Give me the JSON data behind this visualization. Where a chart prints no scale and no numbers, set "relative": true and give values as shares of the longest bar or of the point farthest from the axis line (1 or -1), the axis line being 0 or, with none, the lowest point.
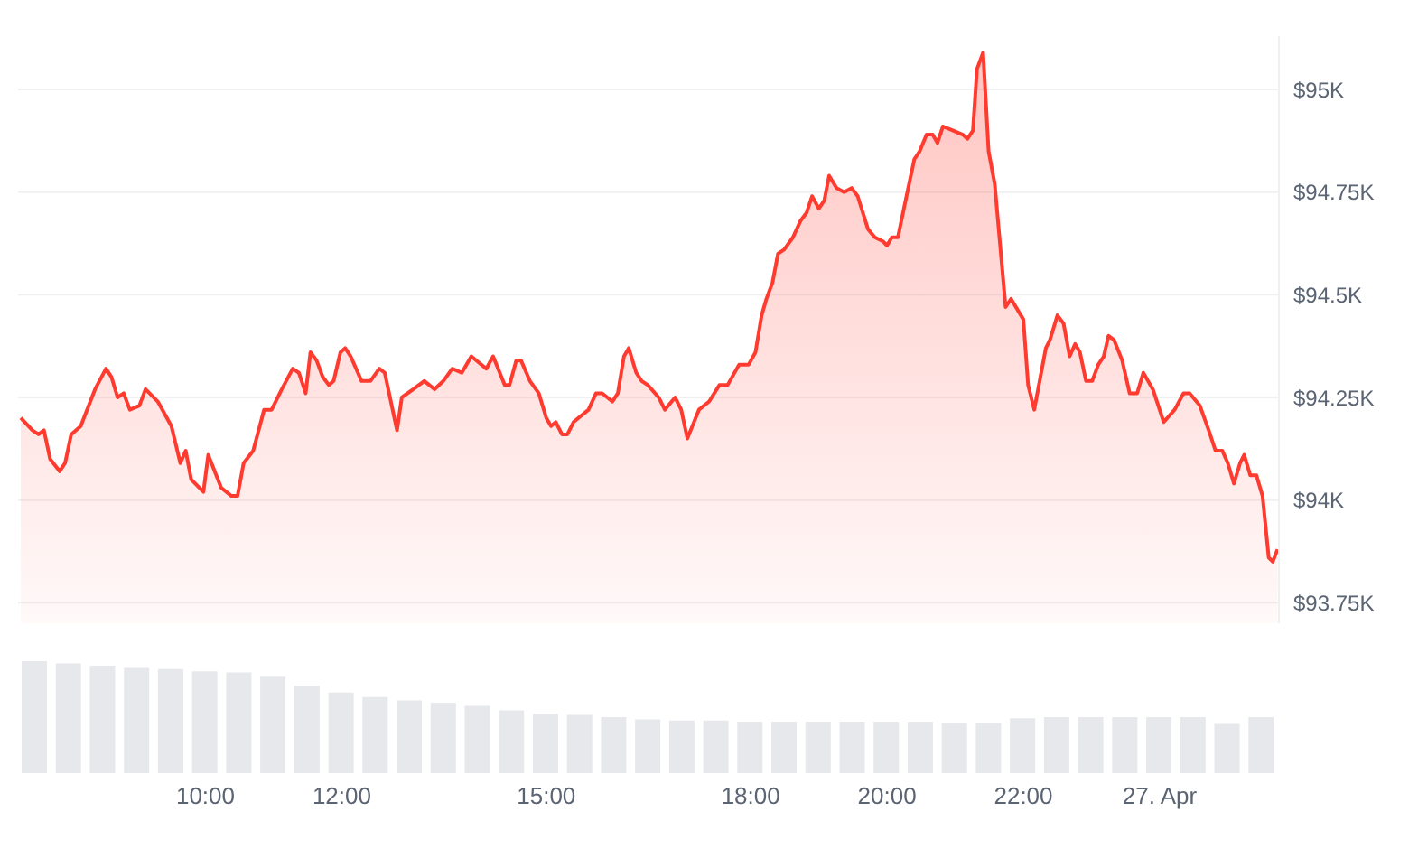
{
  "chart_data": [
    {
      "type": "area",
      "x": [
        7.29,
        7.46,
        7.55,
        7.63,
        7.72,
        7.86,
        7.94,
        8.03,
        8.17,
        8.38,
        8.54,
        8.62,
        8.71,
        8.8,
        8.89,
        9.03,
        9.12,
        9.3,
        9.5,
        9.63,
        9.71,
        9.79,
        9.97,
        10.04,
        10.23,
        10.38,
        10.47,
        10.56,
        10.7,
        10.86,
        10.97,
        11.12,
        11.28,
        11.37,
        11.47,
        11.54,
        11.63,
        11.72,
        11.81,
        11.88,
        11.98,
        12.05,
        12.13,
        12.29,
        12.42,
        12.55,
        12.63,
        12.81,
        12.88,
        13.05,
        13.21,
        13.36,
        13.49,
        13.62,
        13.76,
        13.9,
        14.12,
        14.22,
        14.39,
        14.46,
        14.56,
        14.63,
        14.76,
        14.89,
        15.0,
        15.07,
        15.14,
        15.23,
        15.31,
        15.4,
        15.62,
        15.73,
        15.82,
        15.97,
        16.05,
        16.14,
        16.21,
        16.32,
        16.4,
        16.49,
        16.65,
        16.74,
        16.89,
        16.98,
        17.07,
        17.24,
        17.39,
        17.54,
        17.66,
        17.83,
        17.97,
        18.07,
        18.16,
        18.23,
        18.32,
        18.4,
        18.49,
        18.62,
        18.73,
        18.82,
        18.9,
        19.0,
        19.08,
        19.15,
        19.26,
        19.37,
        19.48,
        19.57,
        19.72,
        19.82,
        19.94,
        20.0,
        20.07,
        20.16,
        20.26,
        20.4,
        20.48,
        20.58,
        20.67,
        20.74,
        20.82,
        20.97,
        21.11,
        21.18,
        21.26,
        21.32,
        21.41,
        21.49,
        21.58,
        21.74,
        21.82,
        22.0,
        22.07,
        22.16,
        22.33,
        22.39,
        22.5,
        22.59,
        22.68,
        22.76,
        22.83,
        22.92,
        23.01,
        23.1,
        23.18,
        23.25,
        23.33,
        23.45,
        23.56,
        23.67,
        23.76,
        23.9,
        24.06,
        24.22,
        24.35,
        24.44,
        24.59,
        24.72,
        24.82,
        24.92,
        25.0,
        25.09,
        25.18,
        25.24,
        25.33,
        25.42,
        25.51,
        25.6,
        25.66,
        25.73
      ],
      "series": [
        {
          "color": "#ff3b30",
          "values": [
            94200,
            94170,
            94160,
            94170,
            94100,
            94070,
            94090,
            94160,
            94180,
            94270,
            94320,
            94300,
            94250,
            94260,
            94220,
            94230,
            94270,
            94240,
            94180,
            94090,
            94120,
            94050,
            94020,
            94110,
            94030,
            94010,
            94010,
            94090,
            94120,
            94220,
            94220,
            94270,
            94320,
            94310,
            94260,
            94360,
            94340,
            94300,
            94280,
            94290,
            94360,
            94370,
            94350,
            94290,
            94290,
            94320,
            94310,
            94170,
            94250,
            94270,
            94290,
            94270,
            94290,
            94320,
            94310,
            94350,
            94320,
            94350,
            94280,
            94280,
            94340,
            94340,
            94290,
            94260,
            94200,
            94180,
            94190,
            94160,
            94160,
            94190,
            94220,
            94260,
            94260,
            94240,
            94260,
            94350,
            94370,
            94310,
            94290,
            94280,
            94250,
            94220,
            94250,
            94220,
            94150,
            94220,
            94240,
            94280,
            94280,
            94330,
            94330,
            94360,
            94450,
            94490,
            94530,
            94600,
            94610,
            94640,
            94680,
            94700,
            94740,
            94710,
            94730,
            94790,
            94760,
            94750,
            94760,
            94740,
            94660,
            94640,
            94630,
            94620,
            94640,
            94640,
            94720,
            94830,
            94850,
            94890,
            94890,
            94870,
            94910,
            94900,
            94890,
            94880,
            94900,
            95050,
            95090,
            94850,
            94770,
            94470,
            94490,
            94440,
            94280,
            94220,
            94370,
            94390,
            94450,
            94430,
            94350,
            94380,
            94360,
            94290,
            94290,
            94330,
            94350,
            94400,
            94390,
            94340,
            94260,
            94260,
            94310,
            94270,
            94190,
            94220,
            94260,
            94260,
            94230,
            94170,
            94120,
            94120,
            94090,
            94040,
            94090,
            94110,
            94060,
            94060,
            94010,
            93860,
            93850,
            93880
          ]
        }
      ],
      "xlim": [
        7.25,
        25.75
      ],
      "xticks": [
        {
          "value": 10,
          "label": null
        },
        {
          "value": 12,
          "label": null
        },
        {
          "value": 15,
          "label": null
        },
        {
          "value": 18,
          "label": null
        },
        {
          "value": 20,
          "label": null
        },
        {
          "value": 22,
          "label": null
        },
        {
          "value": 24,
          "label": null
        }
      ],
      "ylim": [
        93700,
        95130
      ],
      "yticks": [
        {
          "value": 93750,
          "label": "$93.75K"
        },
        {
          "value": 94000,
          "label": "$94K"
        },
        {
          "value": 94250,
          "label": "$94.25K"
        },
        {
          "value": 94500,
          "label": "$94.5K"
        },
        {
          "value": 94750,
          "label": "$94.75K"
        },
        {
          "value": 95000,
          "label": "$95K"
        }
      ],
      "grid": "y",
      "tick_labels": "y"
    },
    {
      "type": "bar",
      "relative": true,
      "x": [
        7.5,
        8,
        8.5,
        9,
        9.5,
        10,
        10.5,
        11,
        11.5,
        12,
        12.5,
        13,
        13.5,
        14,
        14.5,
        15,
        15.5,
        16,
        16.5,
        17,
        17.5,
        18,
        18.5,
        19,
        19.5,
        20,
        20.5,
        21,
        21.5,
        22,
        22.5,
        23,
        23.5,
        24,
        24.5,
        25,
        25.5
      ],
      "series": [
        {
          "color": "#e6e8ec",
          "values": [
            1.0,
            0.98,
            0.96,
            0.94,
            0.93,
            0.91,
            0.9,
            0.86,
            0.78,
            0.72,
            0.68,
            0.65,
            0.63,
            0.6,
            0.56,
            0.53,
            0.52,
            0.5,
            0.48,
            0.47,
            0.47,
            0.46,
            0.46,
            0.46,
            0.46,
            0.46,
            0.46,
            0.45,
            0.45,
            0.49,
            0.5,
            0.5,
            0.5,
            0.5,
            0.5,
            0.44,
            0.5
          ]
        }
      ],
      "xlim": [
        7.25,
        25.75
      ],
      "xticks": [
        {
          "value": 10,
          "label": "10:00"
        },
        {
          "value": 12,
          "label": "12:00"
        },
        {
          "value": 15,
          "label": "15:00"
        },
        {
          "value": 18,
          "label": "18:00"
        },
        {
          "value": 20,
          "label": "20:00"
        },
        {
          "value": 22,
          "label": "22:00"
        },
        {
          "value": 24,
          "label": "27. Apr"
        }
      ]
    }
  ]
}
